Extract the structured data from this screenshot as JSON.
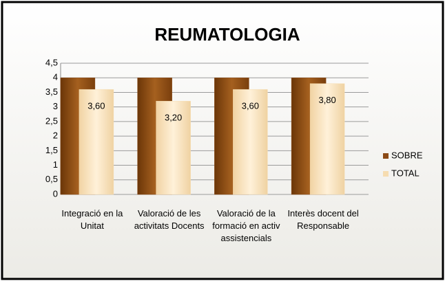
{
  "chart_data": {
    "type": "bar",
    "title": "REUMATOLOGIA",
    "categories": [
      "Integració en la Unitat",
      "Valoració de les activitats Docents",
      "Valoració de la formació en activ assistencials",
      "Interès docent del Responsable"
    ],
    "series": [
      {
        "name": "SOBRE",
        "color": "#8b4a16",
        "values": [
          4,
          4,
          4,
          4
        ]
      },
      {
        "name": "TOTAL",
        "color": "#f6dcb0",
        "values": [
          3.6,
          3.2,
          3.6,
          3.8
        ],
        "value_labels": [
          "3,60",
          "3,20",
          "3,60",
          "3,80"
        ]
      }
    ],
    "ylim": [
      0,
      4.5
    ],
    "yticks": [
      0,
      {
        "value": 0.5,
        "label": "0,5"
      },
      1,
      {
        "value": 1.5,
        "label": "1,5"
      },
      2,
      {
        "value": 2.5,
        "label": "2,5"
      },
      3,
      {
        "value": 3.5,
        "label": "3,5"
      },
      4,
      {
        "value": 4.5,
        "label": "4,5"
      }
    ],
    "grid": true,
    "legend": "right"
  }
}
